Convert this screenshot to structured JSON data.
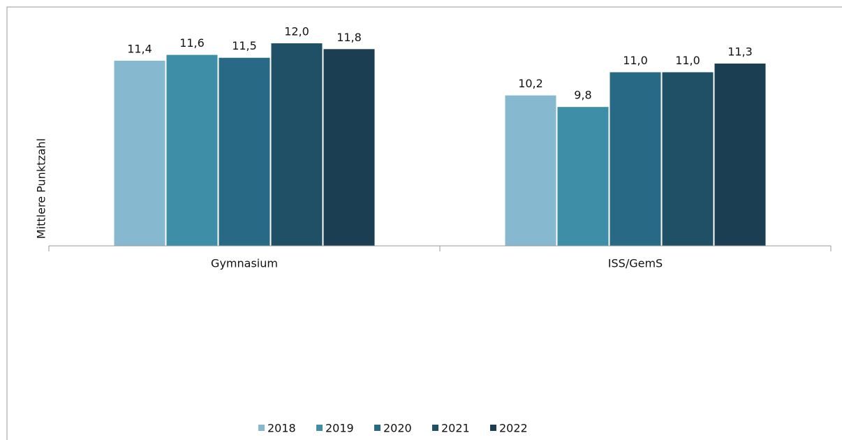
{
  "chart_data": {
    "type": "bar",
    "y_label": "Mittlere Punktzahl",
    "categories": [
      "Gymnasium",
      "ISS/GemS"
    ],
    "series": [
      {
        "name": "2018",
        "color": "#86b8d0",
        "values": [
          11.4,
          10.2
        ],
        "value_labels": [
          "11,4",
          "10,2"
        ]
      },
      {
        "name": "2019",
        "color": "#3e8ea8",
        "values": [
          11.6,
          9.8
        ],
        "value_labels": [
          "11,6",
          "9,8"
        ]
      },
      {
        "name": "2020",
        "color": "#286985",
        "values": [
          11.5,
          11.0
        ],
        "value_labels": [
          "11,5",
          "11,0"
        ]
      },
      {
        "name": "2021",
        "color": "#1f5066",
        "values": [
          12.0,
          11.0
        ],
        "value_labels": [
          "12,0",
          "11,0"
        ]
      },
      {
        "name": "2022",
        "color": "#1b3e52",
        "values": [
          11.8,
          11.3
        ],
        "value_labels": [
          "11,8",
          "11,3"
        ]
      }
    ],
    "ylim": [
      5,
      13
    ],
    "legend": "bottom"
  }
}
